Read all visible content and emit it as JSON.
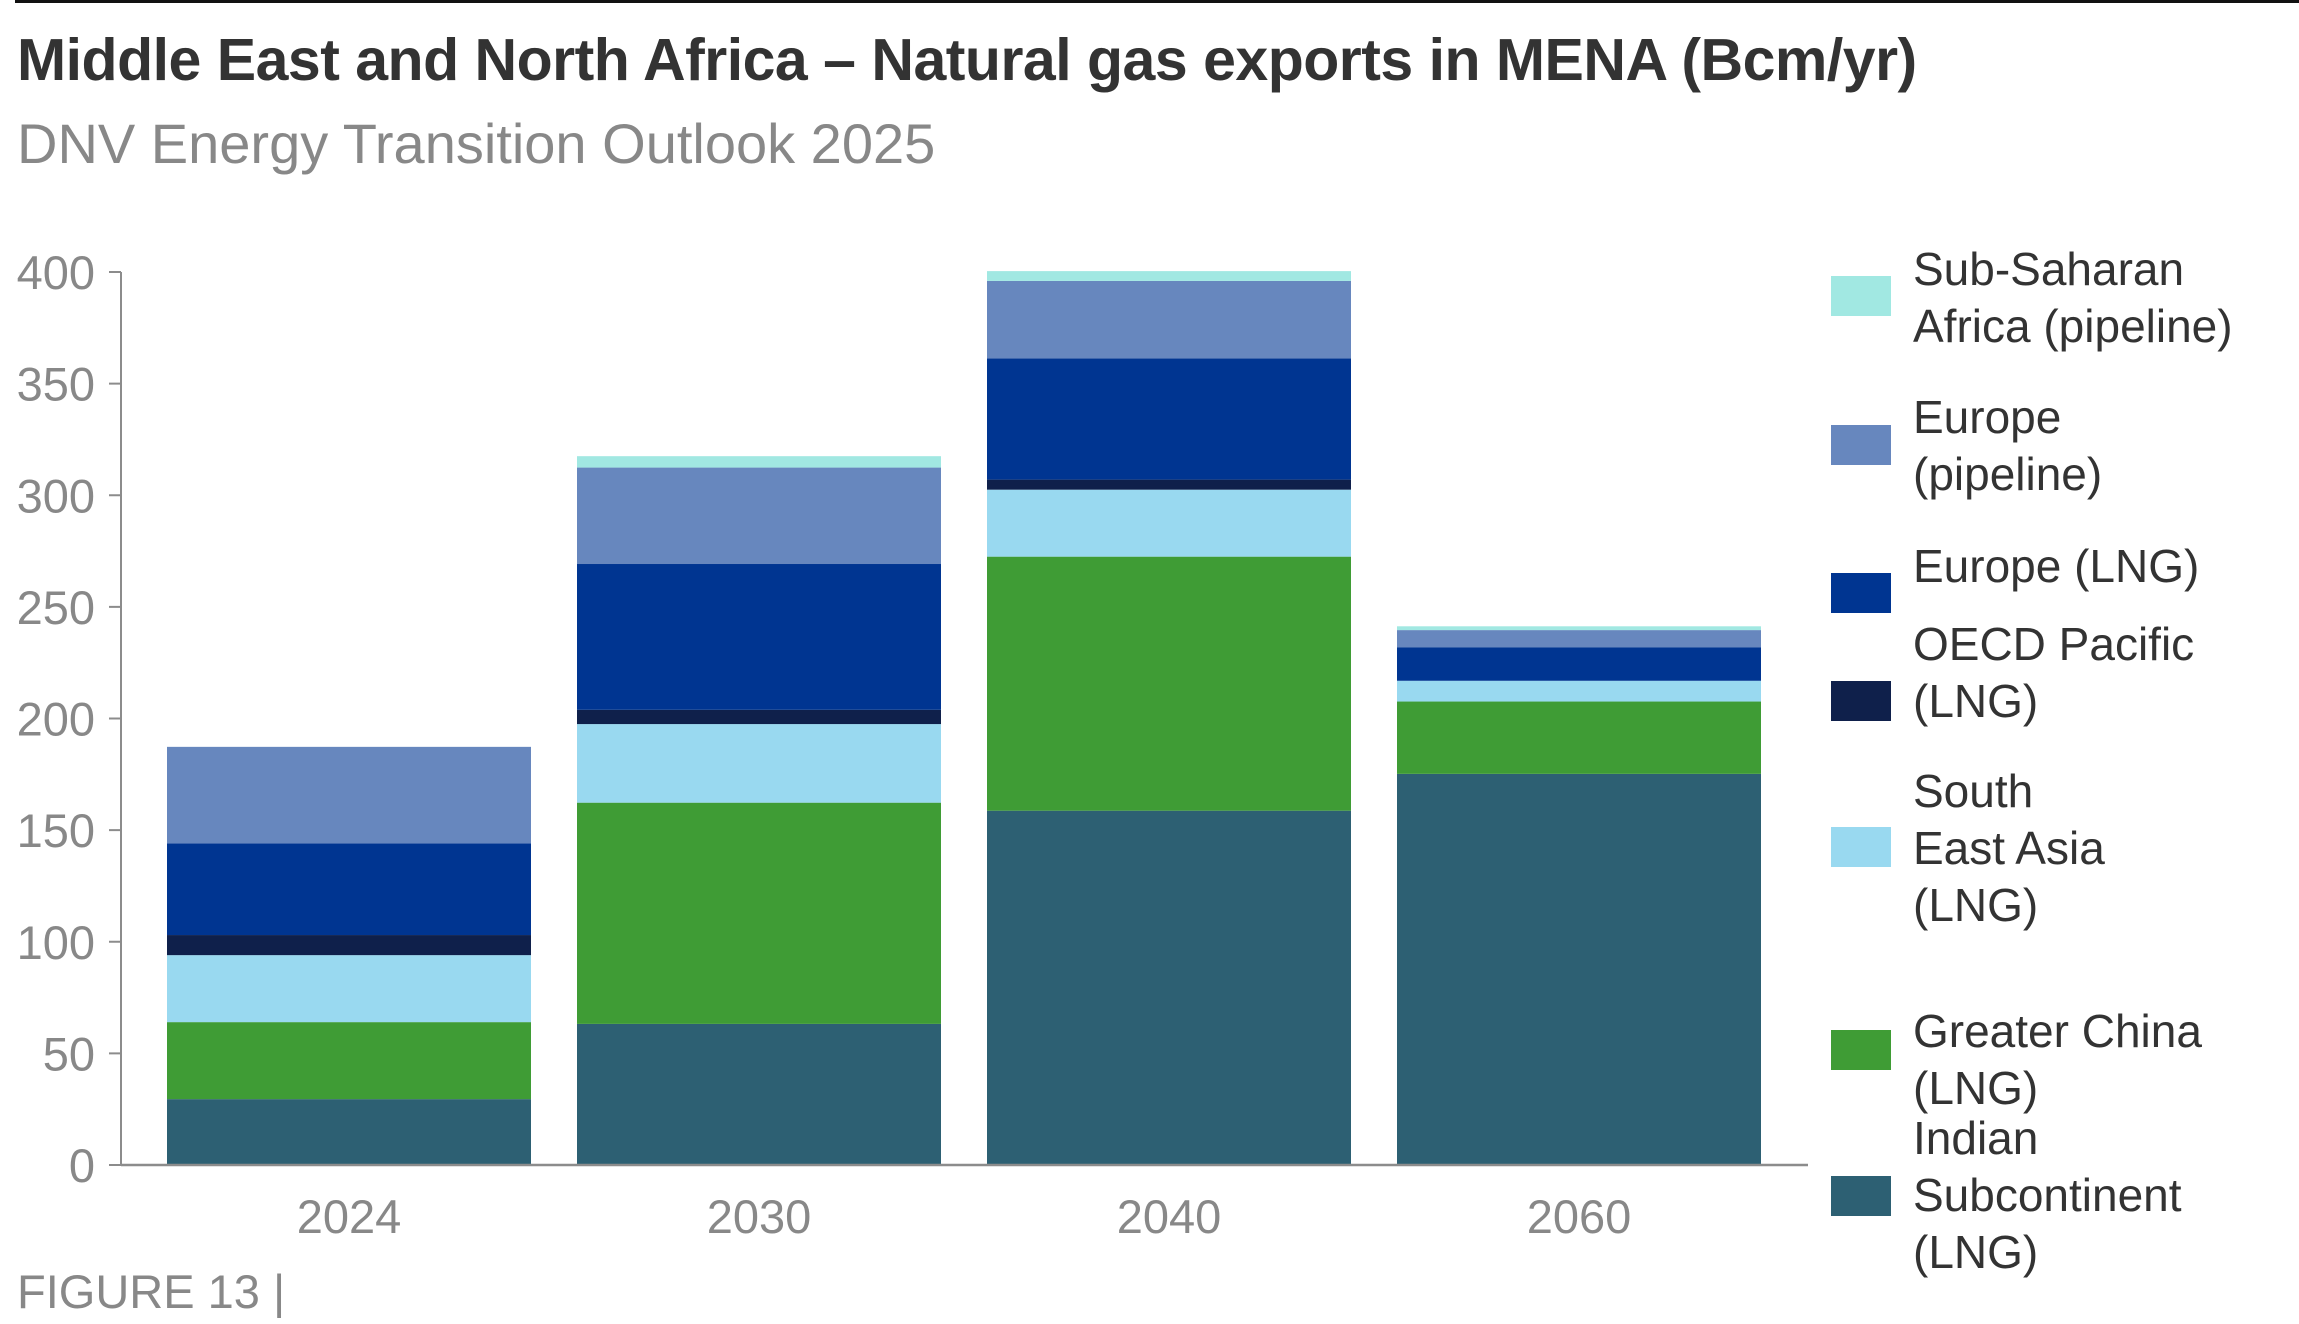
{
  "header": {
    "title": "Middle East and North Africa – Natural gas exports in MENA (Bcm/yr)",
    "subtitle": "DNV Energy Transition Outlook 2025"
  },
  "footer": {
    "figure_label": "FIGURE 13 |"
  },
  "chart_data": {
    "type": "bar",
    "stacked": true,
    "title": "Middle East and North Africa – Natural gas exports in MENA (Bcm/yr)",
    "subtitle": "DNV Energy Transition Outlook 2025",
    "xlabel": "",
    "ylabel": "",
    "ylim": [
      0,
      400
    ],
    "yticks": [
      0,
      50,
      100,
      150,
      200,
      250,
      300,
      350,
      400
    ],
    "ytick_labels": [
      "0",
      "50",
      "100",
      "150",
      "200",
      "250",
      "300",
      "350",
      "400"
    ],
    "grid": false,
    "legend_position": "right",
    "categories": [
      "2024",
      "2030",
      "2040",
      "2060"
    ],
    "series": [
      {
        "name": "Indian Subcontinent (LNG)",
        "legend_label": "Indian\nSubcontinent\n(LNG)",
        "color": "#2D6073",
        "values": [
          29.5,
          63.2,
          158.7,
          175.2
        ]
      },
      {
        "name": "Greater China (LNG)",
        "legend_label": "Greater China\n(LNG)",
        "color": "#3F9C35",
        "values": [
          34.5,
          99.1,
          113.8,
          32.4
        ]
      },
      {
        "name": "South East Asia (LNG)",
        "legend_label": "South\nEast Asia\n(LNG)",
        "color": "#99D9F0",
        "values": [
          30.0,
          35.2,
          30.0,
          9.3
        ]
      },
      {
        "name": "OECD Pacific (LNG)",
        "legend_label": "OECD Pacific\n(LNG)",
        "color": "#0F204B",
        "values": [
          9.0,
          6.4,
          4.5,
          0.0
        ]
      },
      {
        "name": "Europe (LNG)",
        "legend_label": "Europe (LNG)",
        "color": "#003591",
        "values": [
          41.1,
          65.3,
          54.3,
          14.9
        ]
      },
      {
        "name": "Europe (pipeline)",
        "legend_label": "Europe\n(pipeline)",
        "color": "#6787BE",
        "values": [
          43.2,
          43.2,
          34.7,
          7.8
        ]
      },
      {
        "name": "Sub-Saharan Africa (pipeline)",
        "legend_label": "Sub-Saharan\nAfrica (pipeline)",
        "color": "#A1E8E2",
        "values": [
          0.0,
          5.1,
          4.4,
          1.7
        ]
      }
    ],
    "legend_order": [
      "Sub-Saharan Africa (pipeline)",
      "Europe (pipeline)",
      "Europe (LNG)",
      "OECD Pacific (LNG)",
      "South East Asia (LNG)",
      "Greater China (LNG)",
      "Indian Subcontinent (LNG)"
    ],
    "axis_color": "#8C8C8C",
    "text_color": "#888888"
  }
}
